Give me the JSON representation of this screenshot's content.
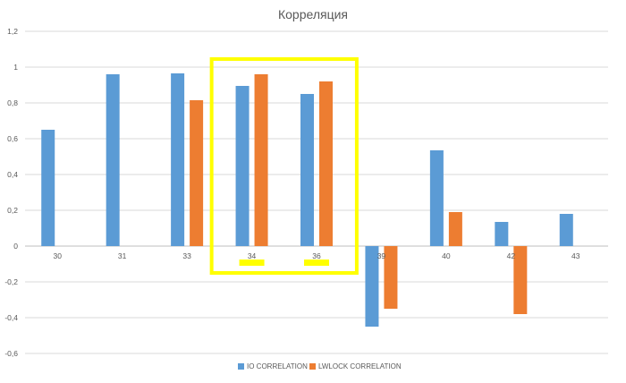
{
  "chart_data": {
    "type": "bar",
    "title": "Корреляция",
    "categories": [
      "30",
      "31",
      "33",
      "34",
      "36",
      "39",
      "40",
      "42",
      "43"
    ],
    "series": [
      {
        "name": "IO CORRELATION",
        "values": [
          0.65,
          0.96,
          0.965,
          0.895,
          0.85,
          -0.45,
          0.535,
          0.135,
          0.18
        ]
      },
      {
        "name": "LWLOCK CORRELATION",
        "values": [
          null,
          null,
          0.815,
          0.96,
          0.92,
          -0.35,
          0.19,
          -0.38,
          null
        ]
      }
    ],
    "ylim": [
      -0.6,
      1.2
    ],
    "yticks": [
      "1,2",
      "1",
      "0,8",
      "0,6",
      "0,4",
      "0,2",
      "0",
      "-0,2",
      "-0,4",
      "-0,6"
    ],
    "grid": true,
    "legend_position": "bottom",
    "colors": {
      "series_1": "#5b9bd5",
      "series_2": "#ed7d31",
      "highlight": "#ffff00",
      "grid": "#d9d9d9",
      "text": "#595959"
    },
    "highlight": {
      "categories": [
        "34",
        "36"
      ]
    }
  }
}
